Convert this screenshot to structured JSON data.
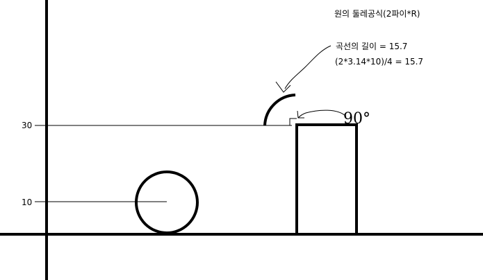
{
  "header": {
    "formula_title": "원의 둘레공식(2파이*R)"
  },
  "annotation": {
    "arc_length_label": "곡선의 길이 =  15.7",
    "arc_length_calc": "(2*3.14*10)/4  =  15.7",
    "angle_note": "90°"
  },
  "axis": {
    "tick_30": "30",
    "tick_10": "10"
  },
  "colors": {
    "ink": "#000000",
    "background": "#ffffff"
  }
}
